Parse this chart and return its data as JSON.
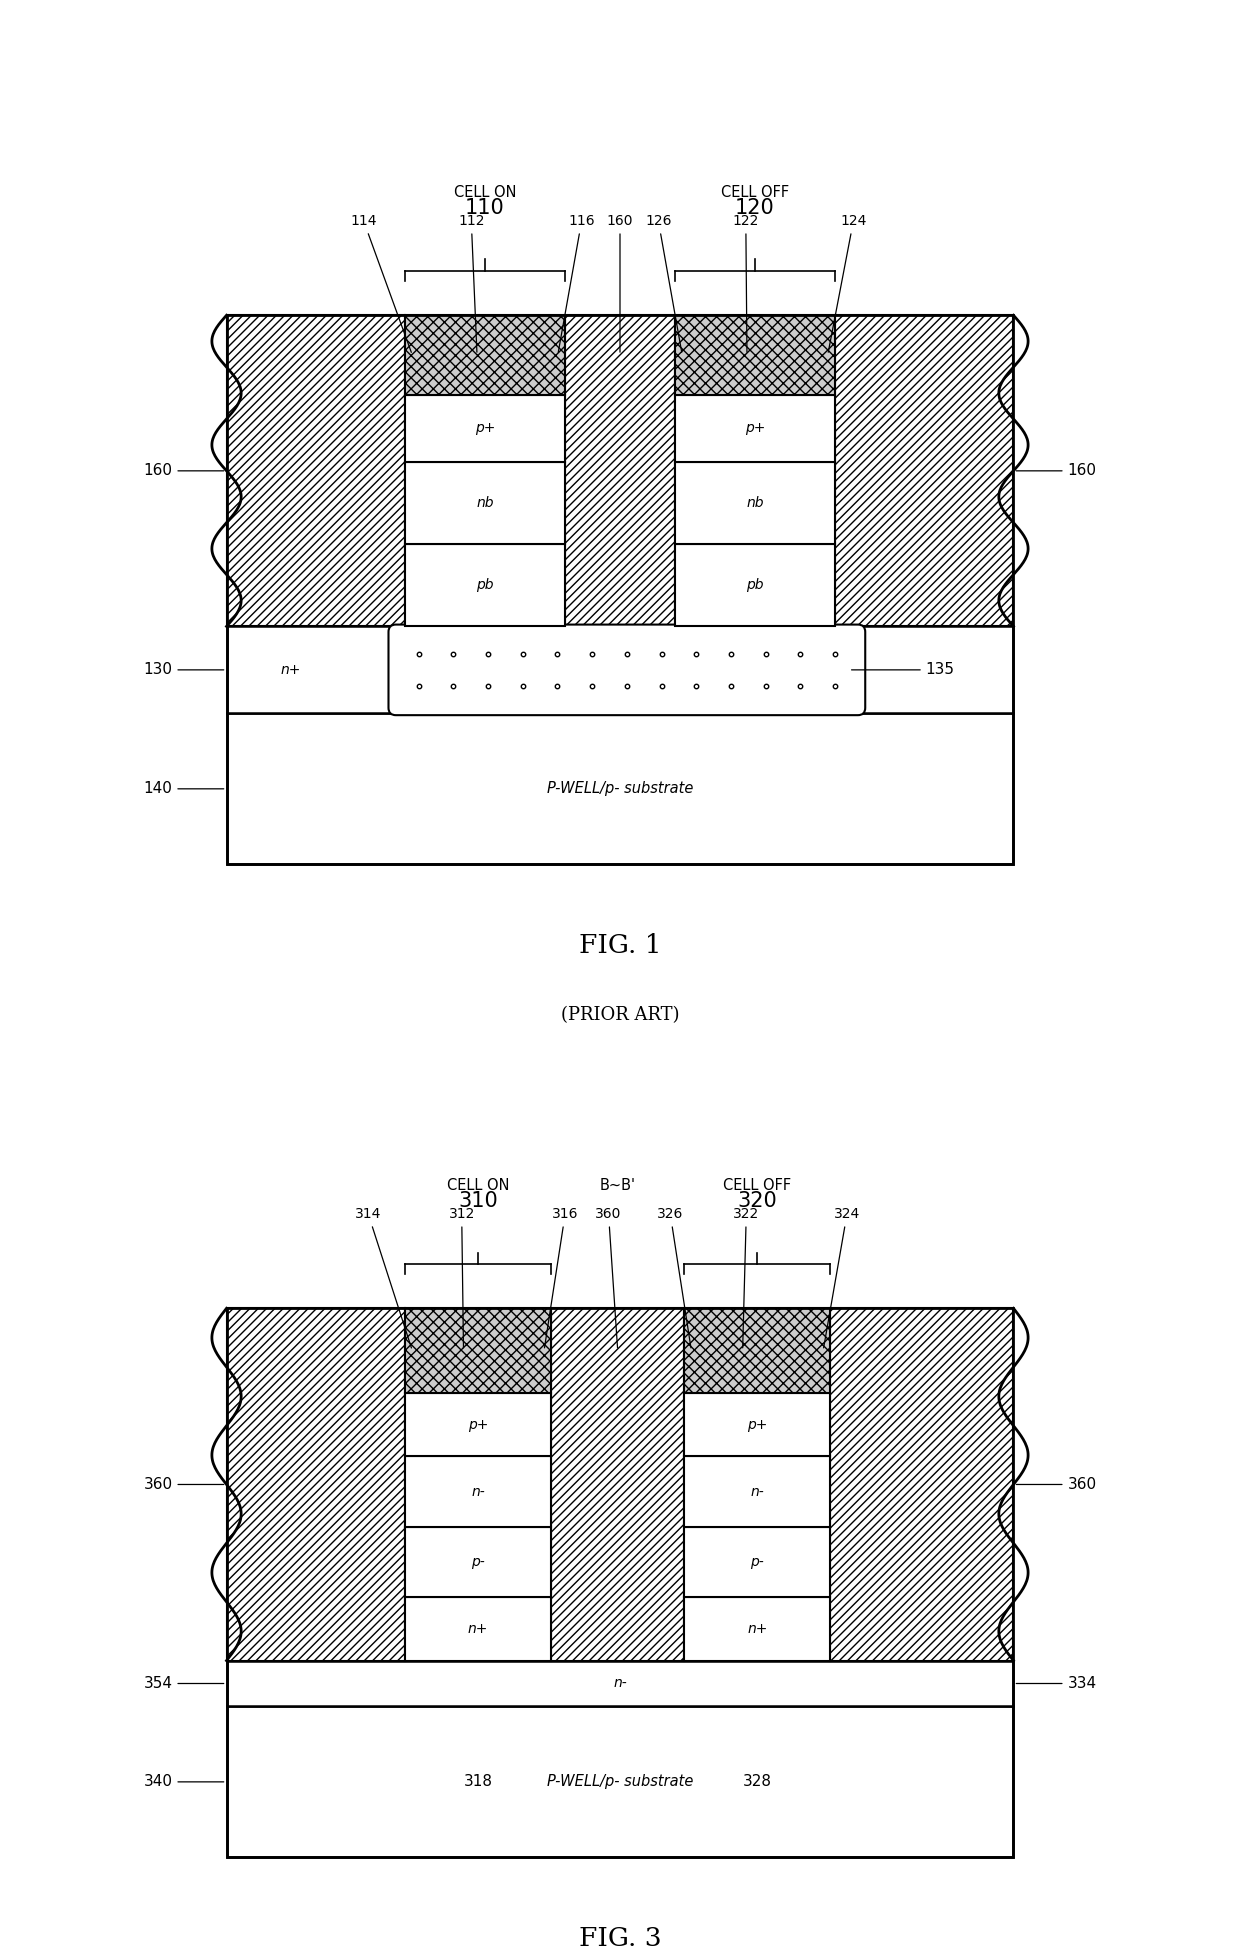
{
  "fig_width": 12.4,
  "fig_height": 19.54,
  "bg_color": "#ffffff",
  "fig1": {
    "title": "FIG. 1",
    "subtitle": "(PRIOR ART)",
    "cell_on_label": "CELL ON",
    "cell_on_num": "110",
    "cell_off_label": "CELL OFF",
    "cell_off_num": "120",
    "ref_114": "114",
    "ref_112": "112",
    "ref_116": "116",
    "ref_160a": "160",
    "ref_126": "126",
    "ref_122": "122",
    "ref_124": "124",
    "layers_on": [
      "p+",
      "nb",
      "pb"
    ],
    "layers_off": [
      "p+",
      "nb",
      "pb"
    ],
    "n_region": "n+",
    "ref_130": "130",
    "ref_135": "135",
    "substrate_label": "P-WELL/p- substrate",
    "ref_140": "140",
    "ref_160_left": "160",
    "ref_160_right": "160"
  },
  "fig3": {
    "title": "FIG. 3",
    "cell_on_label": "CELL ON",
    "cell_on_num": "310",
    "cell_off_label": "CELL OFF",
    "cell_off_num": "320",
    "bb_label": "B~B'",
    "ref_314": "314",
    "ref_312": "312",
    "ref_316": "316",
    "ref_360a": "360",
    "ref_326": "326",
    "ref_322": "322",
    "ref_324": "324",
    "layers_on": [
      "p+",
      "n-",
      "p-",
      "n+"
    ],
    "layers_off": [
      "p+",
      "n-",
      "p-",
      "n+"
    ],
    "n_region": "n-",
    "ref_354": "354",
    "ref_334": "334",
    "substrate_label": "P-WELL/p- substrate",
    "ref_318": "318",
    "ref_328": "328",
    "ref_340": "340",
    "ref_360_left": "360",
    "ref_360_right": "360"
  }
}
